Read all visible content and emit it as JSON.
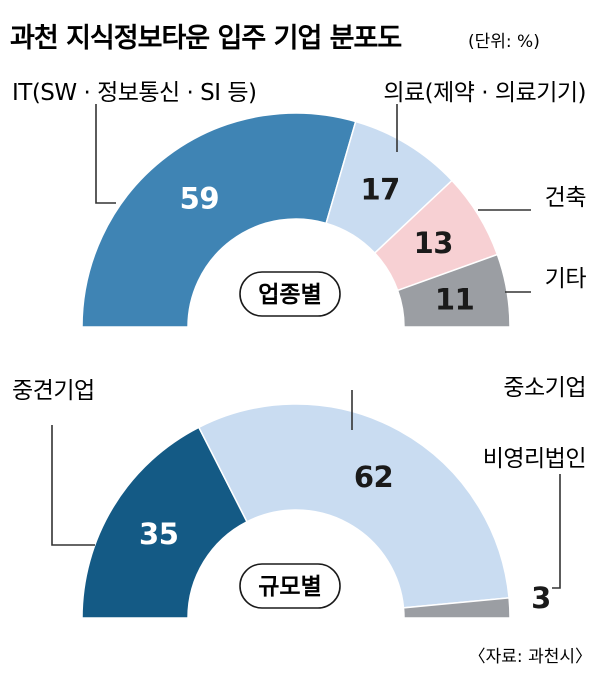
{
  "title": "과천 지식정보타운 입주 기업 분포도",
  "unit": "(단위: %)",
  "source": "〈자료: 과천시〉",
  "chart_data": [
    {
      "type": "pie",
      "variant": "half-donut",
      "center_label": "업종별",
      "slices": [
        {
          "label": "IT(SW · 정보통신 · SI 등)",
          "value": 59,
          "color": "#3f84b4"
        },
        {
          "label": "의료(제약 · 의료기기)",
          "value": 17,
          "color": "#c9dcf1"
        },
        {
          "label": "건축",
          "value": 13,
          "color": "#f7d0d3"
        },
        {
          "label": "기타",
          "value": 11,
          "color": "#9b9ea3"
        }
      ]
    },
    {
      "type": "pie",
      "variant": "half-donut",
      "center_label": "규모별",
      "slices": [
        {
          "label": "중견기업",
          "value": 35,
          "color": "#145a85"
        },
        {
          "label": "중소기업",
          "value": 62,
          "color": "#c9dcf1"
        },
        {
          "label": "비영리법인",
          "value": 3,
          "color": "#9b9ea3"
        }
      ]
    }
  ]
}
